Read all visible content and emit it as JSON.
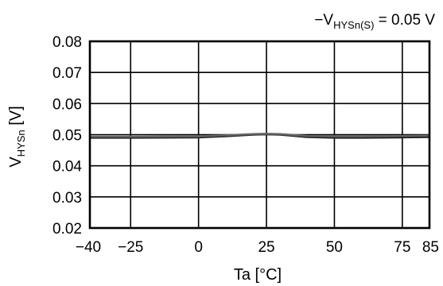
{
  "chart_data": {
    "type": "line",
    "annotation": {
      "prefix": "−V",
      "subscript": "HYSn(S)",
      "suffix": " = 0.05 V"
    },
    "xlabel": "Ta [°C]",
    "ylabel": {
      "main": "V",
      "subscript": "HYSn",
      "suffix": " [V]"
    },
    "xlim": [
      -40,
      85
    ],
    "ylim": [
      0.02,
      0.08
    ],
    "x_ticks": [
      {
        "value": -40,
        "label": "−40"
      },
      {
        "value": -25,
        "label": "−25"
      },
      {
        "value": 0,
        "label": "0"
      },
      {
        "value": 25,
        "label": "25"
      },
      {
        "value": 50,
        "label": "50"
      },
      {
        "value": 75,
        "label": "75"
      },
      {
        "value": 85,
        "label": "85"
      }
    ],
    "x_gridlines": [
      -25,
      0,
      25,
      50,
      75
    ],
    "y_ticks": [
      {
        "value": 0.02,
        "label": "0.02"
      },
      {
        "value": 0.03,
        "label": "0.03"
      },
      {
        "value": 0.04,
        "label": "0.04"
      },
      {
        "value": 0.05,
        "label": "0.05"
      },
      {
        "value": 0.06,
        "label": "0.06"
      },
      {
        "value": 0.07,
        "label": "0.07"
      },
      {
        "value": 0.08,
        "label": "0.08"
      }
    ],
    "grid": true,
    "series": [
      {
        "color": "#222222",
        "x": [
          -40,
          -25,
          0,
          10,
          20,
          25,
          30,
          40,
          50,
          60,
          75,
          85
        ],
        "y": [
          0.049,
          0.049,
          0.0491,
          0.0495,
          0.05,
          0.0501,
          0.05,
          0.0492,
          0.049,
          0.049,
          0.0491,
          0.0492
        ]
      },
      {
        "color": "#666666",
        "x": [
          -40,
          -25,
          0,
          10,
          20,
          25,
          30,
          40,
          50,
          60,
          75,
          85
        ],
        "y": [
          0.0494,
          0.0494,
          0.0495,
          0.0498,
          0.0502,
          0.0503,
          0.0502,
          0.0496,
          0.0495,
          0.0495,
          0.0496,
          0.0497
        ]
      }
    ]
  }
}
